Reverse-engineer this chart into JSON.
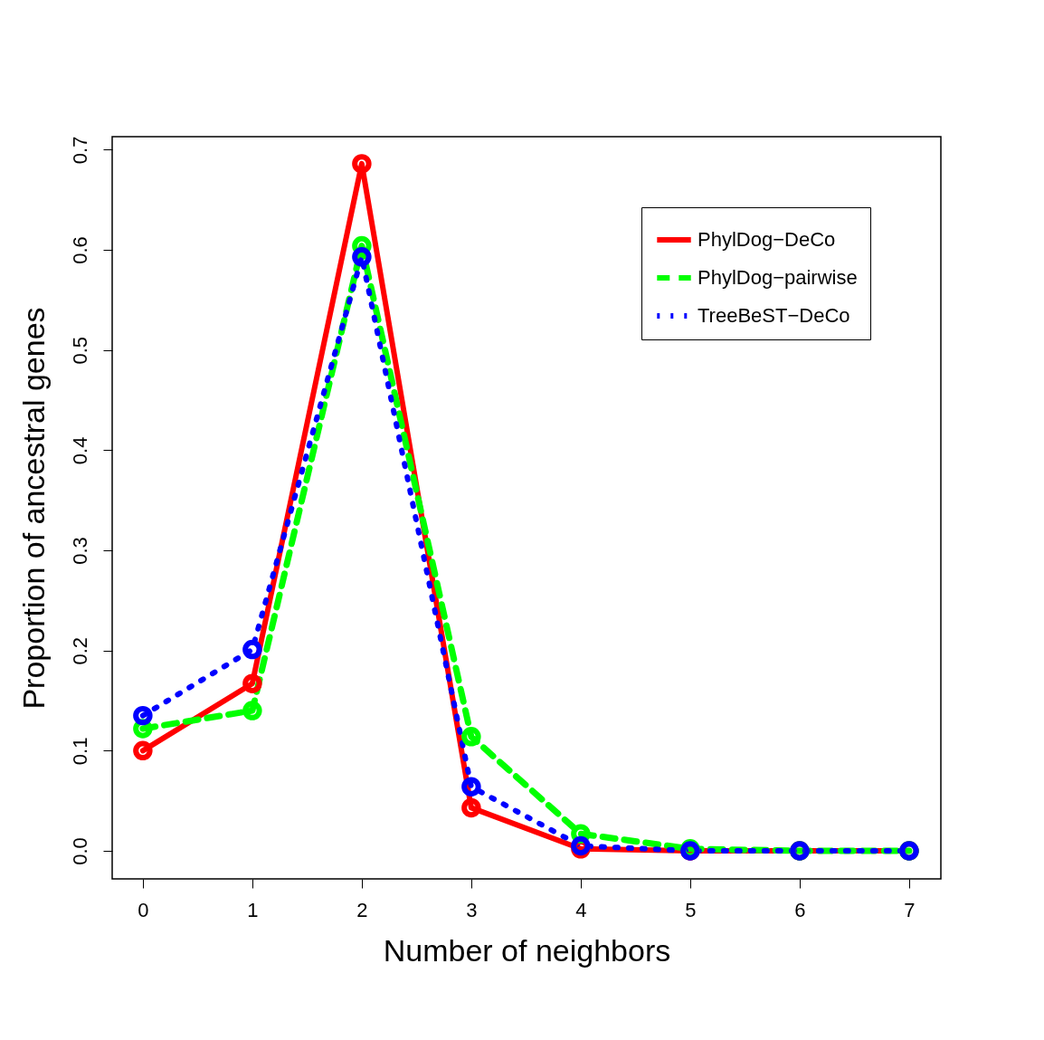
{
  "chart_data": {
    "type": "line",
    "xlabel": "Number of neighbors",
    "ylabel": "Proportion of ancestral genes",
    "x": [
      0,
      1,
      2,
      3,
      4,
      5,
      6,
      7
    ],
    "series": [
      {
        "name": "PhylDog−DeCo",
        "color": "#ff0000",
        "line_style": "solid",
        "values": [
          0.1,
          0.167,
          0.686,
          0.043,
          0.002,
          0.0,
          0.0,
          0.0
        ]
      },
      {
        "name": "PhylDog−pairwise",
        "color": "#00ff00",
        "line_style": "dashed",
        "values": [
          0.122,
          0.14,
          0.604,
          0.114,
          0.017,
          0.002,
          0.0,
          0.0
        ]
      },
      {
        "name": "TreeBeST−DeCo",
        "color": "#0000ff",
        "line_style": "dotted",
        "values": [
          0.135,
          0.201,
          0.593,
          0.064,
          0.005,
          0.0,
          0.0,
          0.0
        ]
      }
    ],
    "xlim": [
      -0.28,
      7.29
    ],
    "ylim": [
      -0.028,
      0.713
    ],
    "xticks": [
      0,
      1,
      2,
      3,
      4,
      5,
      6,
      7
    ],
    "yticks": [
      {
        "value": 0,
        "label": "0.0"
      },
      0.1,
      0.2,
      0.3,
      0.4,
      0.5,
      0.6,
      0.7
    ],
    "marker": "circle",
    "grid": false,
    "legend": "top right"
  }
}
